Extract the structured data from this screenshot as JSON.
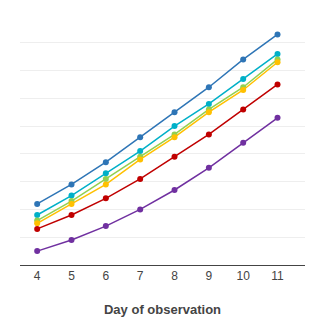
{
  "chart_data": {
    "type": "line",
    "xlabel": "Day of observation",
    "x": [
      4,
      5,
      6,
      7,
      8,
      9,
      10,
      11
    ],
    "series": [
      {
        "color": "#2E75B6",
        "values": [
          22,
          29,
          37,
          46,
          55,
          64,
          74,
          83
        ]
      },
      {
        "color": "#00B0C8",
        "values": [
          18,
          25,
          33,
          41,
          50,
          58,
          67,
          76
        ]
      },
      {
        "color": "#92D050",
        "values": [
          16,
          23,
          31,
          39,
          47,
          56,
          64,
          74
        ]
      },
      {
        "color": "#FFC000",
        "values": [
          15,
          22,
          29,
          38,
          46,
          55,
          63,
          73
        ]
      },
      {
        "color": "#C00000",
        "values": [
          13,
          18,
          24,
          31,
          39,
          47,
          56,
          65
        ]
      },
      {
        "color": "#7030A0",
        "values": [
          5,
          9,
          14,
          20,
          27,
          35,
          44,
          53
        ]
      }
    ],
    "xlim": [
      3.5,
      11.8
    ],
    "xticks": [
      4,
      5,
      6,
      7,
      8,
      9,
      10,
      11
    ],
    "ylim": [
      0,
      90
    ],
    "yticks": [
      0,
      10,
      20,
      30,
      40,
      50,
      60,
      70,
      80,
      90
    ],
    "grid": true,
    "tick_labels": "x",
    "marker": "circle",
    "line_style": "solid"
  }
}
